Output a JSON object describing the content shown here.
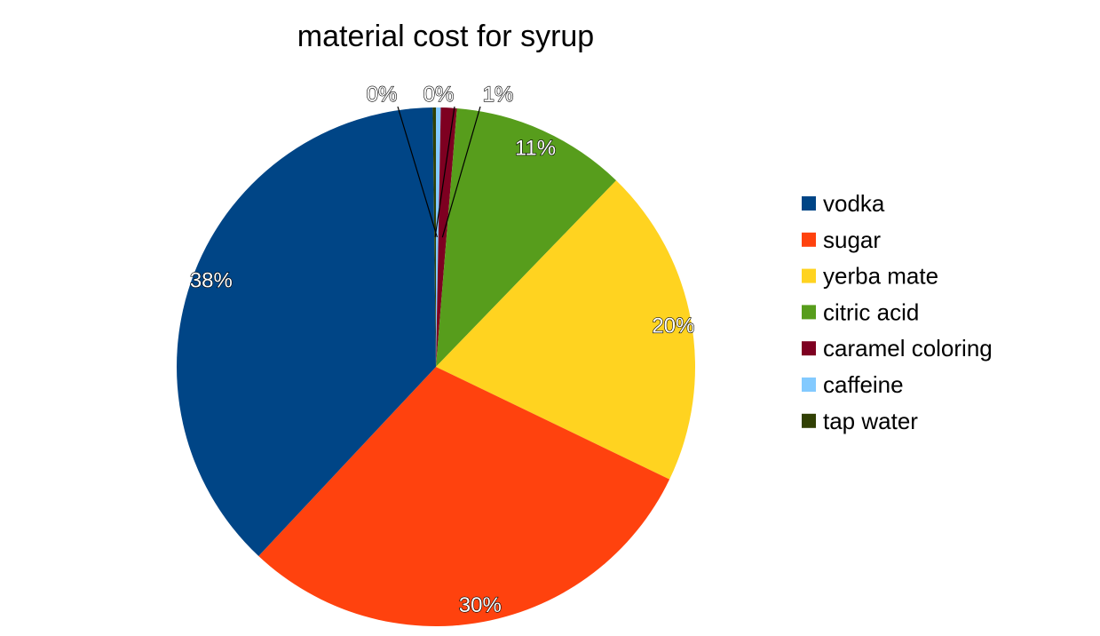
{
  "chart_data": {
    "type": "pie",
    "title": "material cost for syrup",
    "legend_position": "right",
    "series": [
      {
        "name": "vodka",
        "value": 38,
        "label": "38%",
        "color": "#004586"
      },
      {
        "name": "sugar",
        "value": 30,
        "label": "30%",
        "color": "#ff420e"
      },
      {
        "name": "yerba mate",
        "value": 20,
        "label": "20%",
        "color": "#ffd320"
      },
      {
        "name": "citric acid",
        "value": 11,
        "label": "11%",
        "color": "#579d1c"
      },
      {
        "name": "caramel coloring",
        "value": 1,
        "label": "1%",
        "color": "#7e0021"
      },
      {
        "name": "caffeine",
        "value": 0.3,
        "label": "0%",
        "color": "#83caff"
      },
      {
        "name": "tap water",
        "value": 0.2,
        "label": "0%",
        "color": "#314004"
      }
    ],
    "draw_order": [
      "caffeine",
      "caramel coloring",
      "citric acid",
      "yerba mate",
      "sugar",
      "vodka",
      "tap water"
    ]
  }
}
